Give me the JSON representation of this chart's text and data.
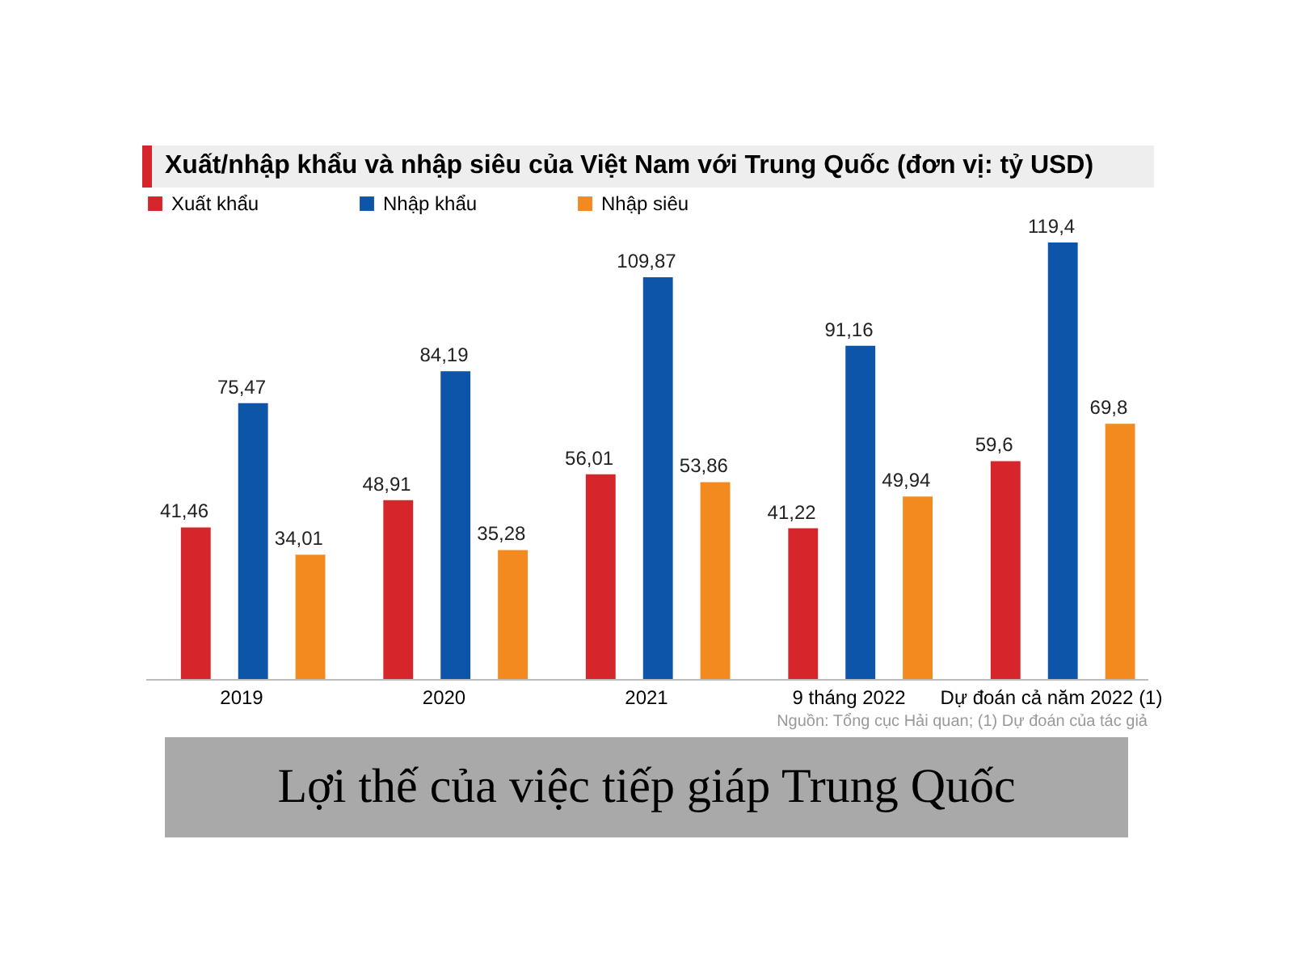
{
  "chart_data": {
    "type": "bar",
    "title": "Xuất/nhập khẩu và nhập siêu của Việt Nam với Trung Quốc (đơn vị: tỷ USD)",
    "categories": [
      "2019",
      "2020",
      "2021",
      "9 tháng 2022",
      "Dự đoán cả năm 2022 (1)"
    ],
    "series": [
      {
        "name": "Xuất khẩu",
        "color": "#d7262b",
        "values": [
          41.46,
          48.91,
          56.01,
          41.22,
          59.6
        ],
        "value_labels": [
          "41,46",
          "48,91",
          "56,01",
          "41,22",
          "59,6"
        ]
      },
      {
        "name": "Nhập khẩu",
        "color": "#0d55a8",
        "values": [
          75.47,
          84.19,
          109.87,
          91.16,
          119.4
        ],
        "value_labels": [
          "75,47",
          "84,19",
          "109,87",
          "91,16",
          "119,4"
        ]
      },
      {
        "name": "Nhập siêu",
        "color": "#f28a20",
        "values": [
          34.01,
          35.28,
          53.86,
          49.94,
          69.8
        ],
        "value_labels": [
          "34,01",
          "35,28",
          "53,86",
          "49,94",
          "69,8"
        ]
      }
    ],
    "legend": "top left",
    "grid": false,
    "annotations": [
      "Nguồn: Tổng cục Hải quan; (1) Dự đoán của tác giả",
      "Lợi thế của việc tiếp giáp Trung Quốc"
    ]
  }
}
